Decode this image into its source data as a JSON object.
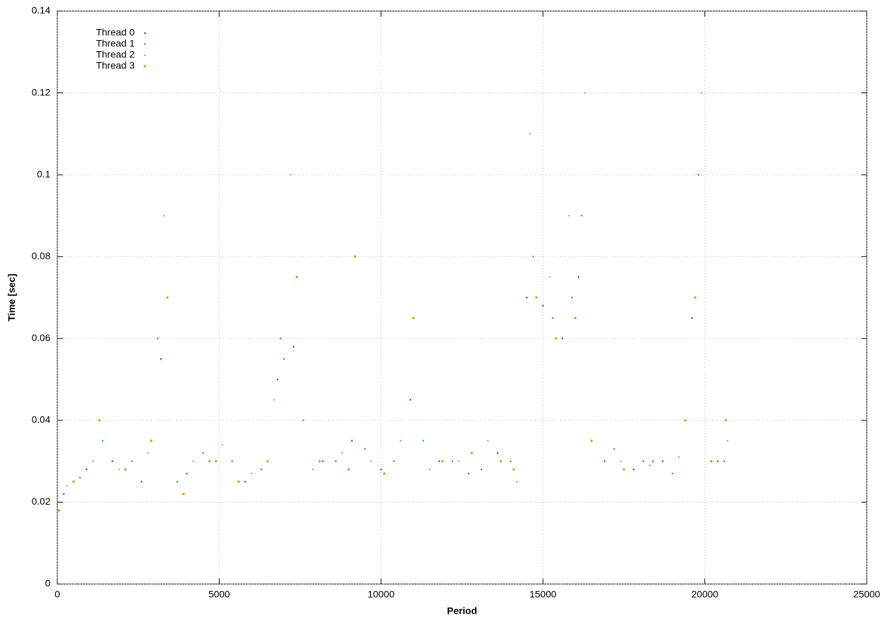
{
  "chart_data": {
    "type": "scatter",
    "x_label": "Period",
    "y_label": "Time [sec]",
    "xlim": [
      0,
      25000
    ],
    "xticks": [
      0,
      5000,
      10000,
      15000,
      20000,
      25000
    ],
    "ylim": [
      0,
      0.14
    ],
    "yticks": [
      0,
      0.02,
      0.04,
      0.06,
      0.08,
      0.1,
      0.12,
      0.14
    ],
    "grid": true,
    "legend": "top-left",
    "series": [
      {
        "name": "Thread 0",
        "color": "#9400d3",
        "x": [
          200,
          900,
          1700,
          2600,
          3200,
          4000,
          4900,
          5800,
          6800,
          7300,
          8200,
          9100,
          10000,
          10900,
          11800,
          12700,
          13600,
          14500,
          15000,
          15600,
          16100,
          16900,
          17800,
          18700,
          19600,
          20400
        ],
        "values": [
          0.022,
          0.028,
          0.03,
          0.025,
          0.055,
          0.027,
          0.03,
          0.025,
          0.05,
          0.058,
          0.03,
          0.035,
          0.028,
          0.045,
          0.03,
          0.027,
          0.032,
          0.07,
          0.068,
          0.06,
          0.075,
          0.03,
          0.028,
          0.03,
          0.065,
          0.03
        ]
      },
      {
        "name": "Thread 1",
        "color": "#009e73",
        "x": [
          100,
          700,
          1400,
          2300,
          3100,
          3700,
          4500,
          5400,
          6300,
          7000,
          7600,
          8600,
          9500,
          10400,
          11300,
          12200,
          13100,
          14000,
          14700,
          15300,
          15900,
          16200,
          17200,
          18100,
          19000,
          19800,
          20600
        ],
        "values": [
          0.02,
          0.026,
          0.035,
          0.03,
          0.06,
          0.025,
          0.032,
          0.03,
          0.028,
          0.055,
          0.04,
          0.03,
          0.033,
          0.03,
          0.035,
          0.03,
          0.028,
          0.03,
          0.08,
          0.065,
          0.07,
          0.09,
          0.033,
          0.03,
          0.027,
          0.1,
          0.03
        ]
      },
      {
        "name": "Thread 2",
        "color": "#56b4e9",
        "x": [
          300,
          1100,
          1900,
          2800,
          3300,
          4200,
          5100,
          6000,
          6700,
          7200,
          7900,
          8800,
          9700,
          10600,
          11500,
          12400,
          13300,
          14200,
          14600,
          15200,
          15800,
          16300,
          17400,
          18300,
          19200,
          19900,
          20700
        ],
        "values": [
          0.024,
          0.03,
          0.028,
          0.032,
          0.09,
          0.03,
          0.034,
          0.027,
          0.045,
          0.1,
          0.028,
          0.032,
          0.03,
          0.035,
          0.028,
          0.03,
          0.035,
          0.025,
          0.11,
          0.075,
          0.09,
          0.12,
          0.03,
          0.029,
          0.031,
          0.12,
          0.035
        ]
      },
      {
        "name": "Thread 3",
        "color": "#e69f00",
        "x": [
          50,
          500,
          1300,
          2100,
          2900,
          3400,
          3900,
          4700,
          5600,
          6500,
          6900,
          7400,
          8100,
          9000,
          9200,
          10100,
          11000,
          11900,
          12800,
          13700,
          14100,
          14800,
          15400,
          16000,
          16500,
          17500,
          18400,
          19400,
          19700,
          20200,
          20650
        ],
        "values": [
          0.018,
          0.025,
          0.04,
          0.028,
          0.035,
          0.07,
          0.022,
          0.03,
          0.025,
          0.03,
          0.06,
          0.075,
          0.03,
          0.028,
          0.08,
          0.027,
          0.065,
          0.03,
          0.032,
          0.03,
          0.028,
          0.07,
          0.06,
          0.065,
          0.035,
          0.028,
          0.03,
          0.04,
          0.07,
          0.03,
          0.04
        ]
      }
    ]
  }
}
